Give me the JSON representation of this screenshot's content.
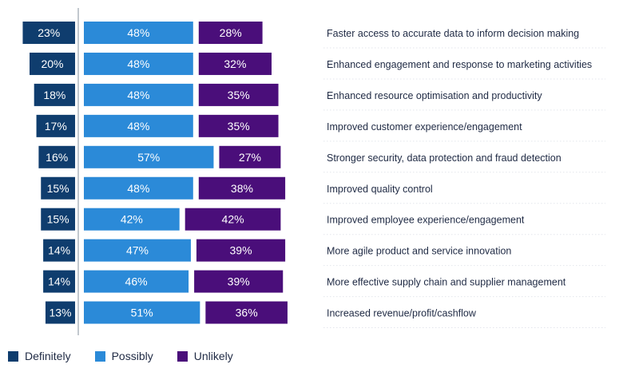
{
  "chart_data": {
    "type": "bar",
    "orientation": "horizontal-diverging",
    "categories": [
      "Faster access to accurate data to inform decision making",
      "Enhanced engagement and response to marketing activities",
      "Enhanced resource optimisation and productivity",
      "Improved customer experience/engagement",
      "Stronger security, data protection and fraud detection",
      "Improved quality control",
      "Improved employee experience/engagement",
      "More agile product and service innovation",
      "More effective supply chain and supplier management",
      "Increased revenue/profit/cashflow"
    ],
    "series": [
      {
        "name": "Definitely",
        "color": "#0f3d6e",
        "values": [
          23,
          20,
          18,
          17,
          16,
          15,
          15,
          14,
          14,
          13
        ]
      },
      {
        "name": "Possibly",
        "color": "#2b8ad8",
        "values": [
          48,
          48,
          48,
          48,
          57,
          48,
          42,
          47,
          46,
          51
        ]
      },
      {
        "name": "Unlikely",
        "color": "#4a0e7a",
        "values": [
          28,
          32,
          35,
          35,
          27,
          38,
          42,
          39,
          39,
          36
        ]
      }
    ],
    "value_suffix": "%",
    "legend_position": "bottom-left",
    "title": "",
    "xlabel": "",
    "ylabel": ""
  },
  "legend": {
    "items": [
      {
        "label": "Definitely",
        "color": "#0f3d6e"
      },
      {
        "label": "Possibly",
        "color": "#2b8ad8"
      },
      {
        "label": "Unlikely",
        "color": "#4a0e7a"
      }
    ]
  }
}
